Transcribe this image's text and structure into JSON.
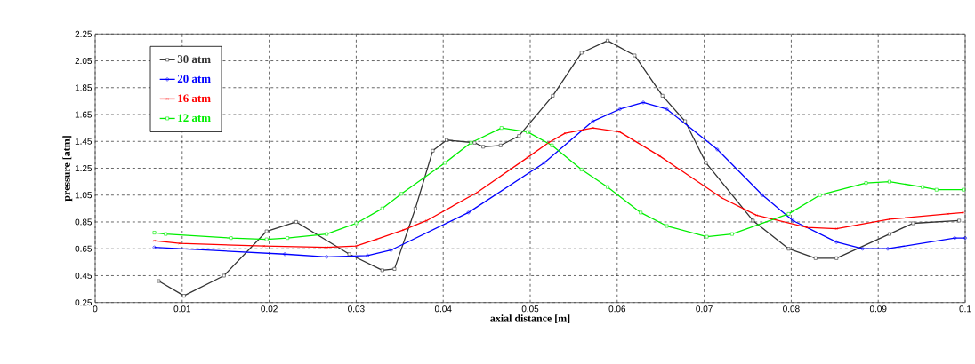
{
  "chart_data": {
    "type": "line",
    "xlabel": "axial distance [m]",
    "ylabel": "pressure [atm]",
    "xlim": [
      0,
      0.1
    ],
    "ylim": [
      0.25,
      2.25
    ],
    "xticks": [
      0,
      0.01,
      0.02,
      0.03,
      0.04,
      0.05,
      0.06,
      0.07,
      0.08,
      0.09,
      0.1
    ],
    "yticks": [
      0.25,
      0.45,
      0.65,
      0.85,
      1.05,
      1.25,
      1.45,
      1.65,
      1.85,
      2.05,
      2.25
    ],
    "grid": true,
    "legend": "top left",
    "line_style": "solid",
    "series": [
      {
        "name": "30 atm",
        "color": "#333333",
        "marker": "square",
        "x": [
          0.0073,
          0.0102,
          0.0148,
          0.0197,
          0.0231,
          0.0292,
          0.033,
          0.0344,
          0.0368,
          0.0388,
          0.0404,
          0.0436,
          0.0446,
          0.0466,
          0.0487,
          0.0526,
          0.0559,
          0.0589,
          0.062,
          0.0652,
          0.0678,
          0.0702,
          0.0756,
          0.0797,
          0.0828,
          0.0852,
          0.0913,
          0.094,
          0.0993
        ],
        "values": [
          0.41,
          0.3,
          0.45,
          0.78,
          0.85,
          0.61,
          0.49,
          0.5,
          0.95,
          1.38,
          1.46,
          1.44,
          1.41,
          1.42,
          1.49,
          1.79,
          2.11,
          2.2,
          2.09,
          1.79,
          1.6,
          1.29,
          0.86,
          0.65,
          0.58,
          0.58,
          0.76,
          0.84,
          0.86
        ]
      },
      {
        "name": "20 atm",
        "color": "#0000ff",
        "marker": "circle",
        "x": [
          0.0068,
          0.0218,
          0.0266,
          0.0313,
          0.034,
          0.0429,
          0.0516,
          0.0572,
          0.0603,
          0.063,
          0.0657,
          0.0715,
          0.0767,
          0.0802,
          0.0852,
          0.0882,
          0.0911,
          0.0988,
          0.1
        ],
        "values": [
          0.66,
          0.61,
          0.59,
          0.6,
          0.64,
          0.92,
          1.29,
          1.6,
          1.69,
          1.74,
          1.69,
          1.39,
          1.05,
          0.86,
          0.7,
          0.65,
          0.65,
          0.73,
          0.73
        ]
      },
      {
        "name": "16 atm",
        "color": "#ff0000",
        "marker": "cross",
        "x": [
          0.0068,
          0.0097,
          0.0194,
          0.0266,
          0.03,
          0.0323,
          0.0354,
          0.0381,
          0.0439,
          0.0497,
          0.0521,
          0.054,
          0.0572,
          0.0603,
          0.0649,
          0.072,
          0.076,
          0.0818,
          0.0852,
          0.0913,
          0.098,
          0.0998
        ],
        "values": [
          0.71,
          0.69,
          0.67,
          0.66,
          0.67,
          0.72,
          0.79,
          0.86,
          1.07,
          1.33,
          1.44,
          1.51,
          1.55,
          1.52,
          1.34,
          1.03,
          0.9,
          0.81,
          0.8,
          0.87,
          0.91,
          0.92
        ]
      },
      {
        "name": "12 atm",
        "color": "#00ee00",
        "marker": "square",
        "x": [
          0.0068,
          0.0081,
          0.0156,
          0.0197,
          0.0221,
          0.0266,
          0.03,
          0.033,
          0.0352,
          0.0402,
          0.0432,
          0.0467,
          0.0497,
          0.0525,
          0.0559,
          0.0589,
          0.0627,
          0.0657,
          0.0703,
          0.0732,
          0.0797,
          0.0833,
          0.0886,
          0.0913,
          0.0951,
          0.0967,
          0.0998
        ],
        "values": [
          0.77,
          0.76,
          0.73,
          0.72,
          0.73,
          0.76,
          0.84,
          0.95,
          1.06,
          1.29,
          1.44,
          1.55,
          1.52,
          1.42,
          1.24,
          1.11,
          0.92,
          0.82,
          0.74,
          0.76,
          0.91,
          1.05,
          1.14,
          1.15,
          1.11,
          1.09,
          1.09
        ]
      }
    ]
  }
}
